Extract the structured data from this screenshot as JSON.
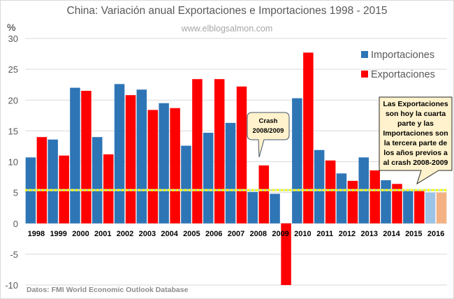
{
  "chart_data": {
    "type": "bar",
    "title": "China: Variación anual Exportaciones e Importaciones 1998 - 2015",
    "subtitle": "www.elblogsalmon.com",
    "ylabel": "%",
    "xlabel": "",
    "source": "Datos: FMI World Economic Outlook Database",
    "ylim": [
      -10,
      30
    ],
    "yticks": [
      30,
      25,
      20,
      15,
      10,
      5,
      0,
      -5,
      -10
    ],
    "grid": true,
    "legend_position": "top-right",
    "categories": [
      "1998",
      "1999",
      "2000",
      "2001",
      "2002",
      "2003",
      "2004",
      "2005",
      "2006",
      "2007",
      "2008",
      "2009",
      "2010",
      "2011",
      "2012",
      "2013",
      "2014",
      "2015",
      "2016"
    ],
    "series": [
      {
        "name": "Importaciones",
        "color": "#2E75B6",
        "forecast_color": "#9DC3E6",
        "values": [
          10.7,
          13.6,
          22.0,
          14.0,
          22.6,
          21.7,
          19.5,
          12.6,
          14.7,
          16.3,
          5.1,
          4.8,
          20.3,
          11.9,
          8.1,
          10.7,
          7.0,
          5.3,
          5.0
        ]
      },
      {
        "name": "Exportaciones",
        "color": "#FF0000",
        "forecast_color": "#F4B183",
        "values": [
          14.0,
          11.0,
          21.5,
          11.2,
          20.8,
          18.4,
          18.7,
          23.4,
          23.4,
          22.2,
          9.4,
          -10.2,
          27.7,
          10.2,
          6.9,
          8.6,
          6.4,
          5.3,
          5.0
        ]
      }
    ],
    "forecast_categories": [
      "2016"
    ],
    "reference_line": {
      "value": 5.4,
      "style": "dotted",
      "color": "#FFFF00"
    },
    "annotations": [
      {
        "name": "crash",
        "lines": [
          "Crash",
          "2008/2009"
        ],
        "points_to": "2008"
      },
      {
        "name": "summary",
        "lines": [
          "Las Exportaciones",
          "son hoy la cuarta",
          "parte y las",
          "Importaciones son",
          "la tercera parte de",
          "los años previos a",
          "al crash 2008-2009"
        ],
        "points_to": "2015"
      }
    ]
  }
}
